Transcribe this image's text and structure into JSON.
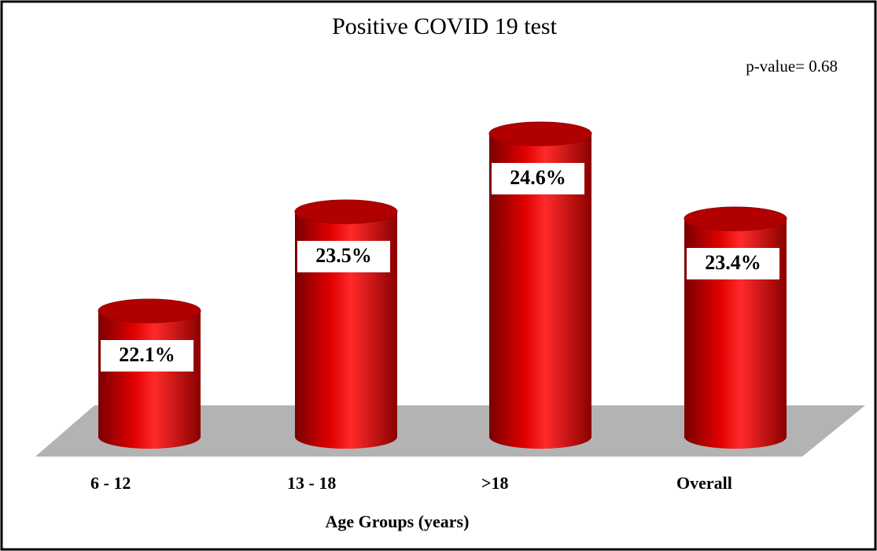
{
  "chart_data": {
    "type": "bar3d",
    "title": "Positive COVID 19 test",
    "annotation": "p-value= 0.68",
    "categories": [
      "6 - 12",
      "13 - 18",
      ">18",
      "Overall"
    ],
    "values": [
      22.1,
      23.5,
      24.6,
      23.4
    ],
    "value_labels": [
      "22.1%",
      "23.5%",
      "24.6%",
      "23.4%"
    ],
    "color": "#cc0000",
    "x_label": "Age Groups (years)"
  }
}
